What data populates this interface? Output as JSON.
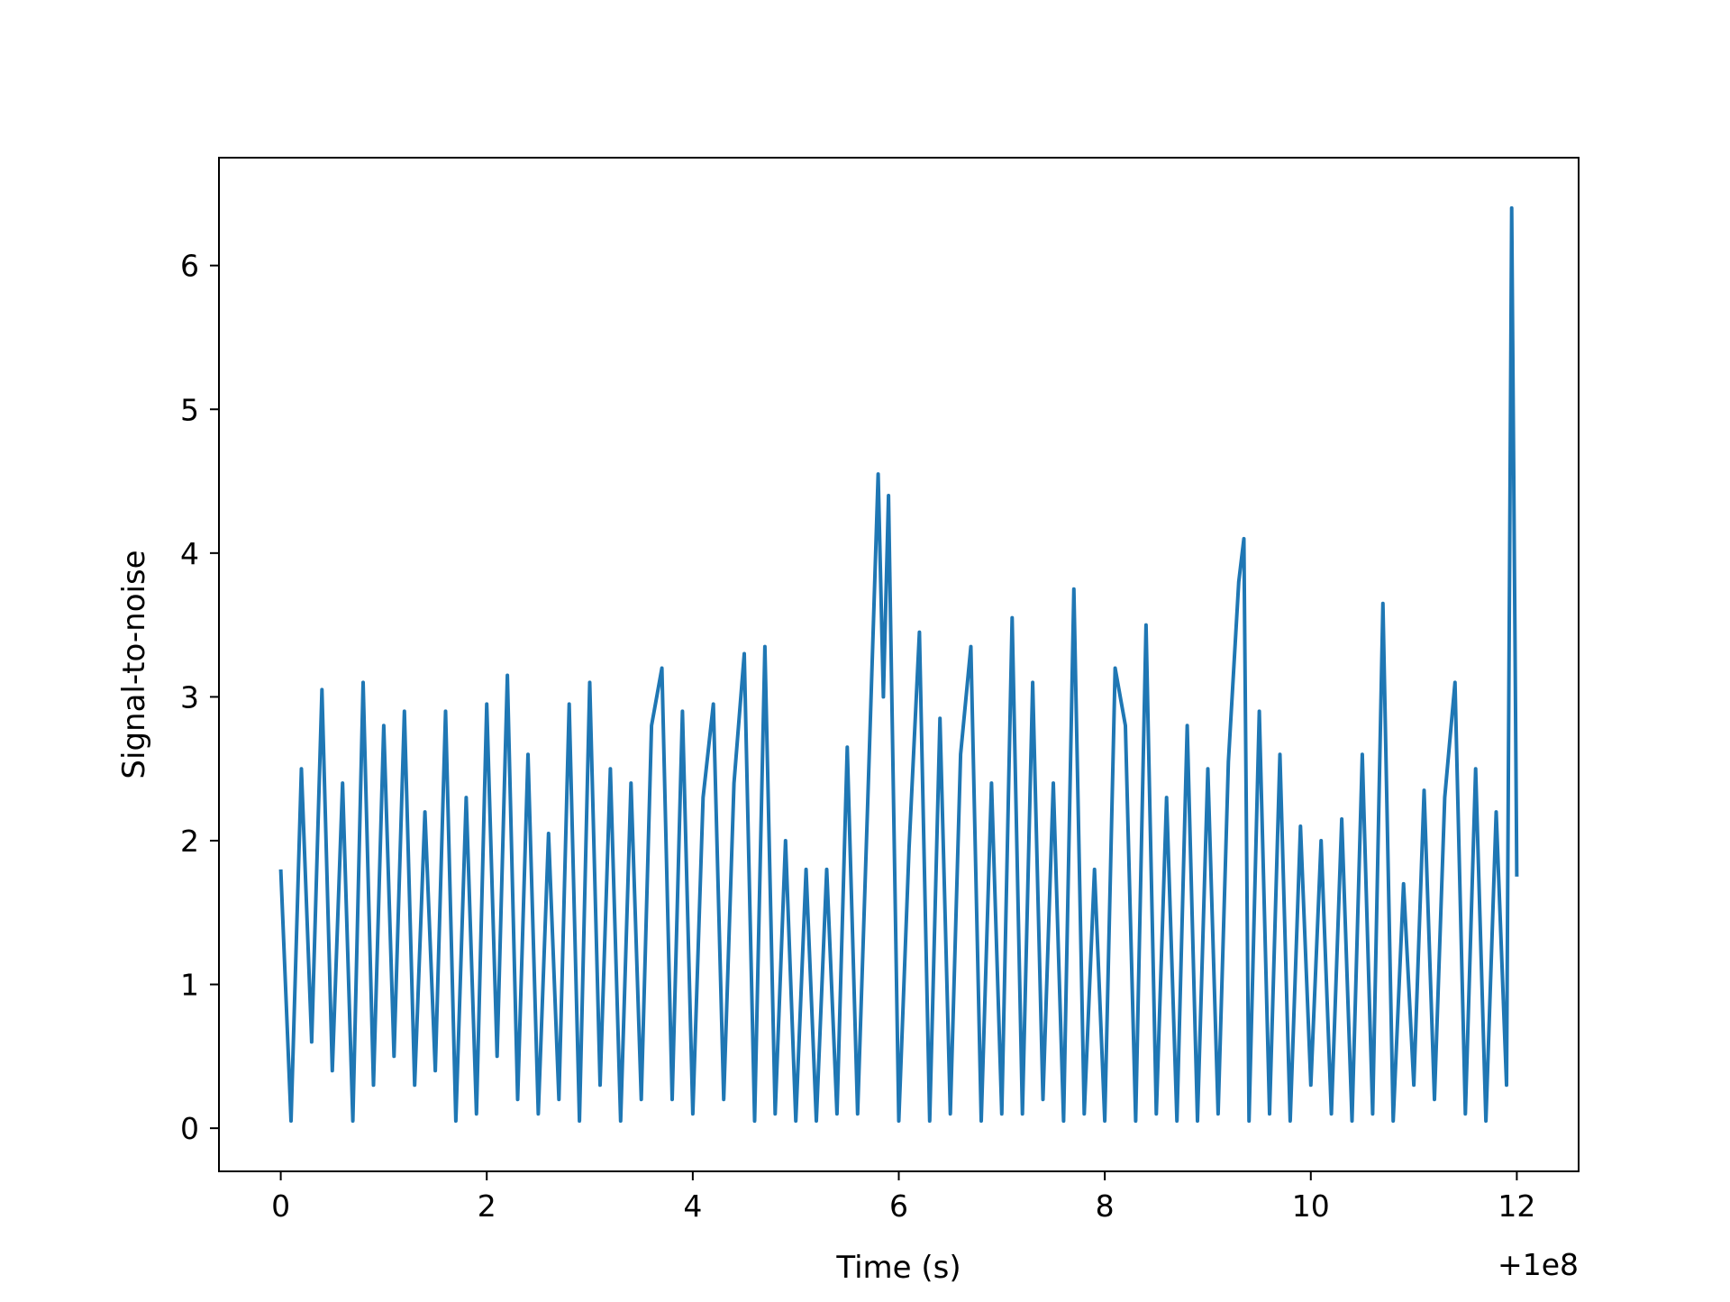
{
  "chart_data": {
    "type": "line",
    "title": "",
    "xlabel": "Time (s)",
    "ylabel": "Signal-to-noise",
    "x_offset_label": "+1e8",
    "xlim": [
      -0.6,
      12.6
    ],
    "ylim": [
      -0.3,
      6.75
    ],
    "xticks": [
      0,
      2,
      4,
      6,
      8,
      10,
      12
    ],
    "xtick_labels": [
      "0",
      "2",
      "4",
      "6",
      "8",
      "10",
      "12"
    ],
    "yticks": [
      0,
      1,
      2,
      3,
      4,
      5,
      6
    ],
    "ytick_labels": [
      "0",
      "1",
      "2",
      "3",
      "4",
      "5",
      "6"
    ],
    "grid": false,
    "series": [
      {
        "color": "#1f77b4",
        "x": [
          0.0,
          0.1,
          0.2,
          0.3,
          0.4,
          0.5,
          0.6,
          0.7,
          0.8,
          0.9,
          1.0,
          1.1,
          1.2,
          1.3,
          1.4,
          1.5,
          1.6,
          1.7,
          1.8,
          1.9,
          2.0,
          2.1,
          2.2,
          2.3,
          2.4,
          2.5,
          2.6,
          2.7,
          2.8,
          2.9,
          3.0,
          3.1,
          3.2,
          3.3,
          3.4,
          3.5,
          3.6,
          3.7,
          3.8,
          3.9,
          4.0,
          4.1,
          4.2,
          4.3,
          4.4,
          4.5,
          4.6,
          4.7,
          4.8,
          4.9,
          5.0,
          5.1,
          5.2,
          5.3,
          5.4,
          5.5,
          5.6,
          5.7,
          5.8,
          5.85,
          5.9,
          6.0,
          6.1,
          6.2,
          6.3,
          6.4,
          6.5,
          6.6,
          6.7,
          6.8,
          6.9,
          7.0,
          7.1,
          7.2,
          7.3,
          7.4,
          7.5,
          7.6,
          7.7,
          7.8,
          7.9,
          8.0,
          8.1,
          8.2,
          8.3,
          8.4,
          8.5,
          8.6,
          8.7,
          8.8,
          8.9,
          9.0,
          9.1,
          9.2,
          9.3,
          9.35,
          9.4,
          9.5,
          9.6,
          9.7,
          9.8,
          9.9,
          10.0,
          10.1,
          10.2,
          10.3,
          10.4,
          10.5,
          10.6,
          10.7,
          10.8,
          10.9,
          11.0,
          11.1,
          11.2,
          11.3,
          11.4,
          11.5,
          11.6,
          11.7,
          11.8,
          11.9,
          11.95,
          12.0
        ],
        "y": [
          1.8,
          0.05,
          2.5,
          0.6,
          3.05,
          0.4,
          2.4,
          0.05,
          3.1,
          0.3,
          2.8,
          0.5,
          2.9,
          0.3,
          2.2,
          0.4,
          2.9,
          0.05,
          2.3,
          0.1,
          2.95,
          0.5,
          3.15,
          0.2,
          2.6,
          0.1,
          2.05,
          0.2,
          2.95,
          0.05,
          3.1,
          0.3,
          2.5,
          0.05,
          2.4,
          0.2,
          2.8,
          3.2,
          0.2,
          2.9,
          0.1,
          2.3,
          2.95,
          0.2,
          2.4,
          3.3,
          0.05,
          3.35,
          0.1,
          2.0,
          0.05,
          1.8,
          0.05,
          1.8,
          0.1,
          2.65,
          0.1,
          2.3,
          4.55,
          3.0,
          4.4,
          0.05,
          1.95,
          3.45,
          0.05,
          2.85,
          0.1,
          2.6,
          3.35,
          0.05,
          2.4,
          0.1,
          3.55,
          0.1,
          3.1,
          0.2,
          2.4,
          0.05,
          3.75,
          0.1,
          1.8,
          0.05,
          3.2,
          2.8,
          0.05,
          3.5,
          0.1,
          2.3,
          0.05,
          2.8,
          0.05,
          2.5,
          0.1,
          2.55,
          3.8,
          4.1,
          0.05,
          2.9,
          0.1,
          2.6,
          0.05,
          2.1,
          0.3,
          2.0,
          0.1,
          2.15,
          0.05,
          2.6,
          0.1,
          3.65,
          0.05,
          1.7,
          0.3,
          2.35,
          0.2,
          2.3,
          3.1,
          0.1,
          2.5,
          0.05,
          2.2,
          0.3,
          6.4,
          1.75
        ]
      }
    ]
  }
}
